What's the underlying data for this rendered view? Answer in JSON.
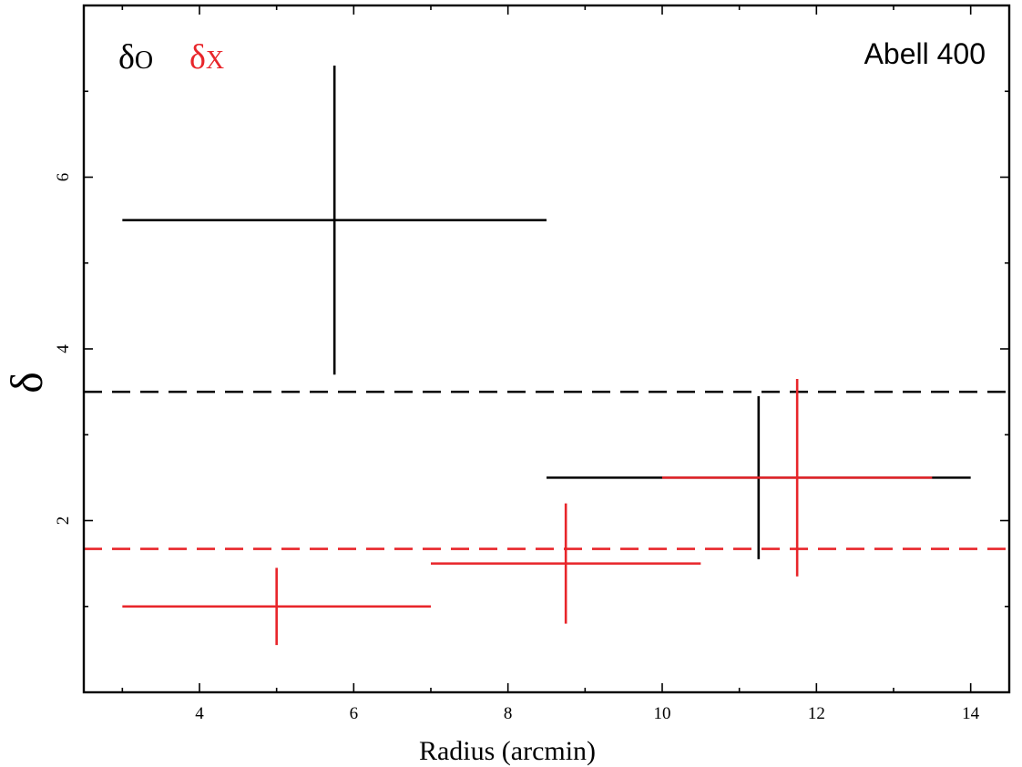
{
  "chart_data": {
    "type": "scatter",
    "title": "",
    "annotation": "Abell 400",
    "xlabel": "Radius (arcmin)",
    "ylabel": "δ",
    "xlim": [
      2.5,
      14.5
    ],
    "ylim": [
      0.0,
      8.0
    ],
    "x_ticks": [
      4,
      6,
      8,
      10,
      12,
      14
    ],
    "y_ticks": [
      2,
      4,
      6
    ],
    "grid": false,
    "legend_placement": "top-left",
    "series": [
      {
        "name": "δO",
        "color": "#000000",
        "points": [
          {
            "x": 5.75,
            "x_low": 3.0,
            "x_high": 8.5,
            "y": 5.5,
            "y_low": 3.7,
            "y_high": 7.3
          },
          {
            "x": 11.25,
            "x_low": 8.5,
            "x_high": 14.0,
            "y": 2.5,
            "y_low": 1.55,
            "y_high": 3.45
          }
        ],
        "reference_line": 3.5
      },
      {
        "name": "δX",
        "color": "#e8252a",
        "points": [
          {
            "x": 5.0,
            "x_low": 3.0,
            "x_high": 7.0,
            "y": 1.0,
            "y_low": 0.55,
            "y_high": 1.45
          },
          {
            "x": 8.75,
            "x_low": 7.0,
            "x_high": 10.5,
            "y": 1.5,
            "y_low": 0.8,
            "y_high": 2.2
          },
          {
            "x": 11.75,
            "x_low": 10.0,
            "x_high": 13.5,
            "y": 2.5,
            "y_low": 1.35,
            "y_high": 3.65
          }
        ],
        "reference_line": 1.67
      }
    ],
    "legend": [
      {
        "greek": "δ",
        "sub": "O",
        "color": "#000000"
      },
      {
        "greek": "δ",
        "sub": "X",
        "color": "#e8252a"
      }
    ]
  }
}
